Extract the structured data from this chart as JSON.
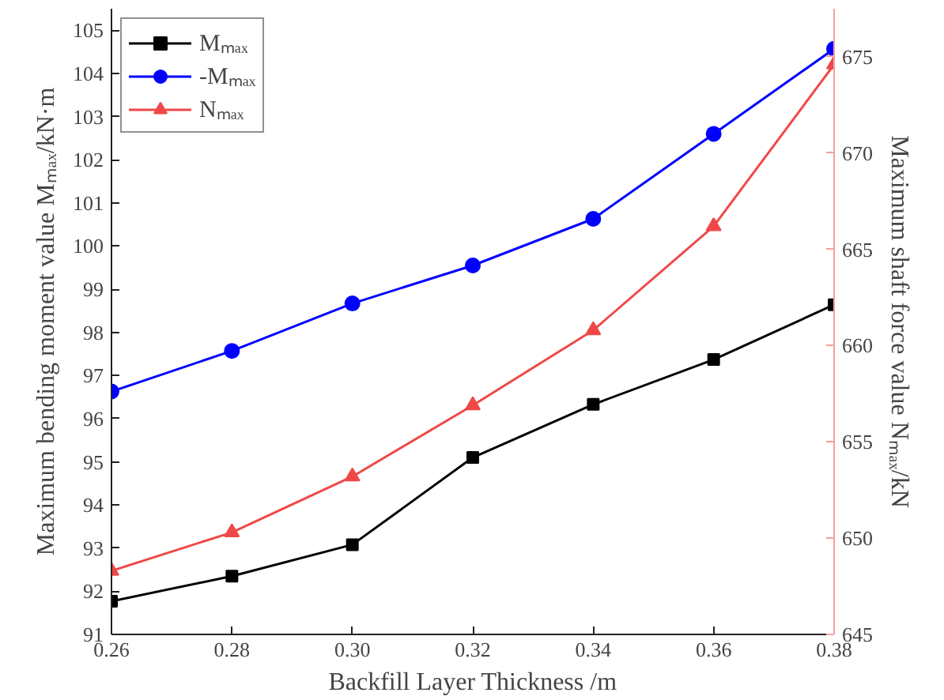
{
  "chart_data": {
    "type": "line",
    "xlabel": "Backfill Layer Thickness /m",
    "ylabel": "Maximum bending moment value Mₘₐₓ/kN·m",
    "y2label": "Maximum shaft force value Nₘₐₓ/kN",
    "x": [
      0.26,
      0.28,
      0.3,
      0.32,
      0.34,
      0.36,
      0.38
    ],
    "xlim": [
      0.26,
      0.38
    ],
    "xticks": [
      {
        "value": 0.26,
        "label": "0.26"
      },
      {
        "value": 0.28,
        "label": "0.28"
      },
      {
        "value": 0.3,
        "label": "0.30"
      },
      {
        "value": 0.32,
        "label": "0.32"
      },
      {
        "value": 0.34,
        "label": "0.34"
      },
      {
        "value": 0.36,
        "label": "0.36"
      },
      {
        "value": 0.38,
        "label": "0.38"
      }
    ],
    "ylim": [
      91,
      105.5
    ],
    "yticks": [
      91,
      92,
      93,
      94,
      95,
      96,
      97,
      98,
      99,
      100,
      101,
      102,
      103,
      104,
      105
    ],
    "y2lim": [
      645,
      677.5
    ],
    "y2ticks": [
      645,
      650,
      655,
      660,
      665,
      670,
      675
    ],
    "grid": false,
    "legend": "top left",
    "series": [
      {
        "name": "Mₘₐₓ",
        "color": "#000000",
        "marker": "square",
        "values": [
          91.77,
          92.35,
          93.08,
          95.1,
          96.33,
          97.37,
          98.64
        ]
      },
      {
        "name": "-Mₘₐₓ",
        "color": "#0000ff",
        "marker": "circle",
        "values": [
          96.63,
          97.57,
          98.67,
          99.55,
          100.63,
          102.6,
          104.57
        ]
      },
      {
        "name": "Nₘₐₓ",
        "color": "#f04848",
        "marker": "triangle",
        "axis": "y2",
        "values": [
          648.3,
          650.3,
          653.2,
          656.9,
          660.8,
          666.2,
          674.6
        ]
      }
    ]
  }
}
